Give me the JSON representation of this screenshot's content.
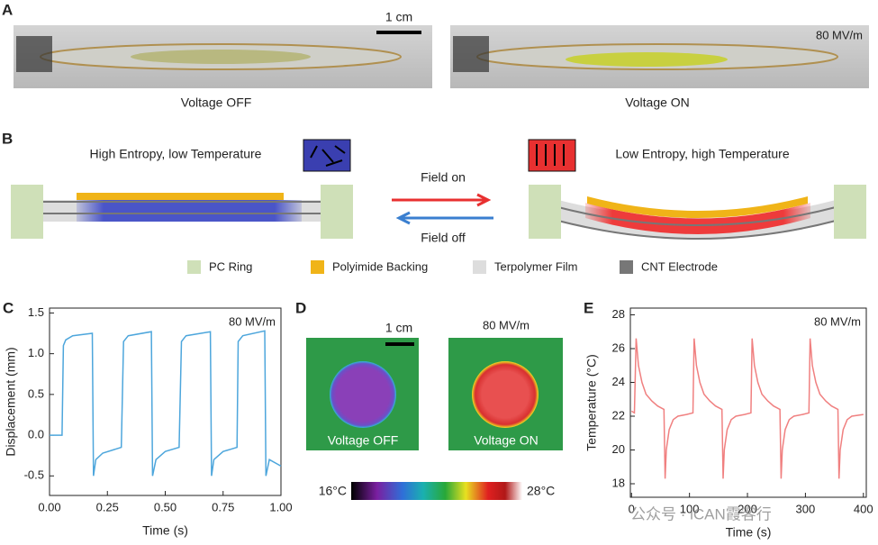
{
  "panels": {
    "a": {
      "label": "A",
      "scale_bar": "1 cm",
      "field": "80 MV/m",
      "left_caption": "Voltage OFF",
      "right_caption": "Voltage ON"
    },
    "b": {
      "label": "B",
      "left_state": "High Entropy, low Temperature",
      "right_state": "Low Entropy, high Temperature",
      "arrow_on": "Field on",
      "arrow_off": "Field off",
      "legend": [
        "PC Ring",
        "Polyimide Backing",
        "Terpolymer Film",
        "CNT Electrode"
      ]
    },
    "d": {
      "label": "D",
      "scale_bar": "1 cm",
      "field": "80 MV/m",
      "left_caption": "Voltage OFF",
      "right_caption": "Voltage ON",
      "colorbar_min": "16°C",
      "colorbar_max": "28°C"
    }
  },
  "chart_data": [
    {
      "type": "line",
      "panel_label": "C",
      "annotation": "80 MV/m",
      "x_label": "Time (s)",
      "y_label": "Displacement (mm)",
      "xlim": [
        0,
        1
      ],
      "ylim": [
        -0.74,
        1.56
      ],
      "xticks": [
        {
          "value": 0,
          "label": "0.00"
        },
        {
          "value": 0.25,
          "label": "0.25"
        },
        {
          "value": 0.5,
          "label": "0.50"
        },
        {
          "value": 0.75,
          "label": "0.75"
        },
        {
          "value": 1,
          "label": "1.00"
        }
      ],
      "yticks": [
        -0.5,
        {
          "value": 0,
          "label": "0.0"
        },
        0.5,
        {
          "value": 1,
          "label": "1.0"
        },
        1.5
      ],
      "x": [
        0,
        0.054,
        0.06,
        0.07,
        0.1,
        0.185,
        0.19,
        0.2,
        0.23,
        0.31,
        0.32,
        0.34,
        0.44,
        0.445,
        0.46,
        0.5,
        0.56,
        0.57,
        0.59,
        0.695,
        0.7,
        0.71,
        0.75,
        0.81,
        0.815,
        0.835,
        0.93,
        0.935,
        0.95,
        1.0
      ],
      "series": [
        {
          "color": "#4da6dc",
          "values": [
            0,
            0,
            1.1,
            1.17,
            1.22,
            1.25,
            -0.5,
            -0.3,
            -0.22,
            -0.15,
            1.15,
            1.22,
            1.27,
            -0.5,
            -0.3,
            -0.2,
            -0.15,
            1.15,
            1.22,
            1.27,
            -0.5,
            -0.3,
            -0.2,
            -0.15,
            1.15,
            1.22,
            1.28,
            -0.5,
            -0.3,
            -0.38
          ]
        }
      ]
    },
    {
      "type": "line",
      "panel_label": "E",
      "annotation": "80 MV/m",
      "x_label": "Time (s)",
      "y_label": "Temperature (°C)",
      "xlim": [
        -2,
        405
      ],
      "ylim": [
        17.2,
        28.4
      ],
      "xticks": [
        0,
        100,
        200,
        300,
        400
      ],
      "yticks": [
        18,
        20,
        22,
        24,
        26,
        28
      ],
      "x": [
        0,
        5,
        8,
        12,
        18,
        25,
        35,
        45,
        56,
        58,
        60,
        65,
        72,
        80,
        95,
        106,
        108,
        112,
        118,
        125,
        135,
        145,
        156,
        158,
        160,
        165,
        172,
        180,
        195,
        206,
        208,
        212,
        218,
        225,
        235,
        245,
        256,
        258,
        260,
        265,
        272,
        280,
        295,
        306,
        308,
        312,
        318,
        325,
        335,
        345,
        356,
        358,
        360,
        365,
        372,
        380,
        400
      ],
      "series": [
        {
          "color": "#f08080",
          "values": [
            22.3,
            22.2,
            26.6,
            25.0,
            24.0,
            23.3,
            22.9,
            22.6,
            22.4,
            18.3,
            20.0,
            21.2,
            21.8,
            22.0,
            22.1,
            22.2,
            26.6,
            25.0,
            24.0,
            23.3,
            22.9,
            22.6,
            22.4,
            18.3,
            20.0,
            21.2,
            21.8,
            22.0,
            22.1,
            22.2,
            26.6,
            25.0,
            24.0,
            23.3,
            22.9,
            22.6,
            22.4,
            18.3,
            20.0,
            21.2,
            21.8,
            22.0,
            22.1,
            22.2,
            26.6,
            25.0,
            24.0,
            23.3,
            22.9,
            22.6,
            22.4,
            18.3,
            20.0,
            21.2,
            21.8,
            22.0,
            22.1
          ]
        }
      ]
    }
  ],
  "watermark": "公众号 · iCAN霞客行"
}
